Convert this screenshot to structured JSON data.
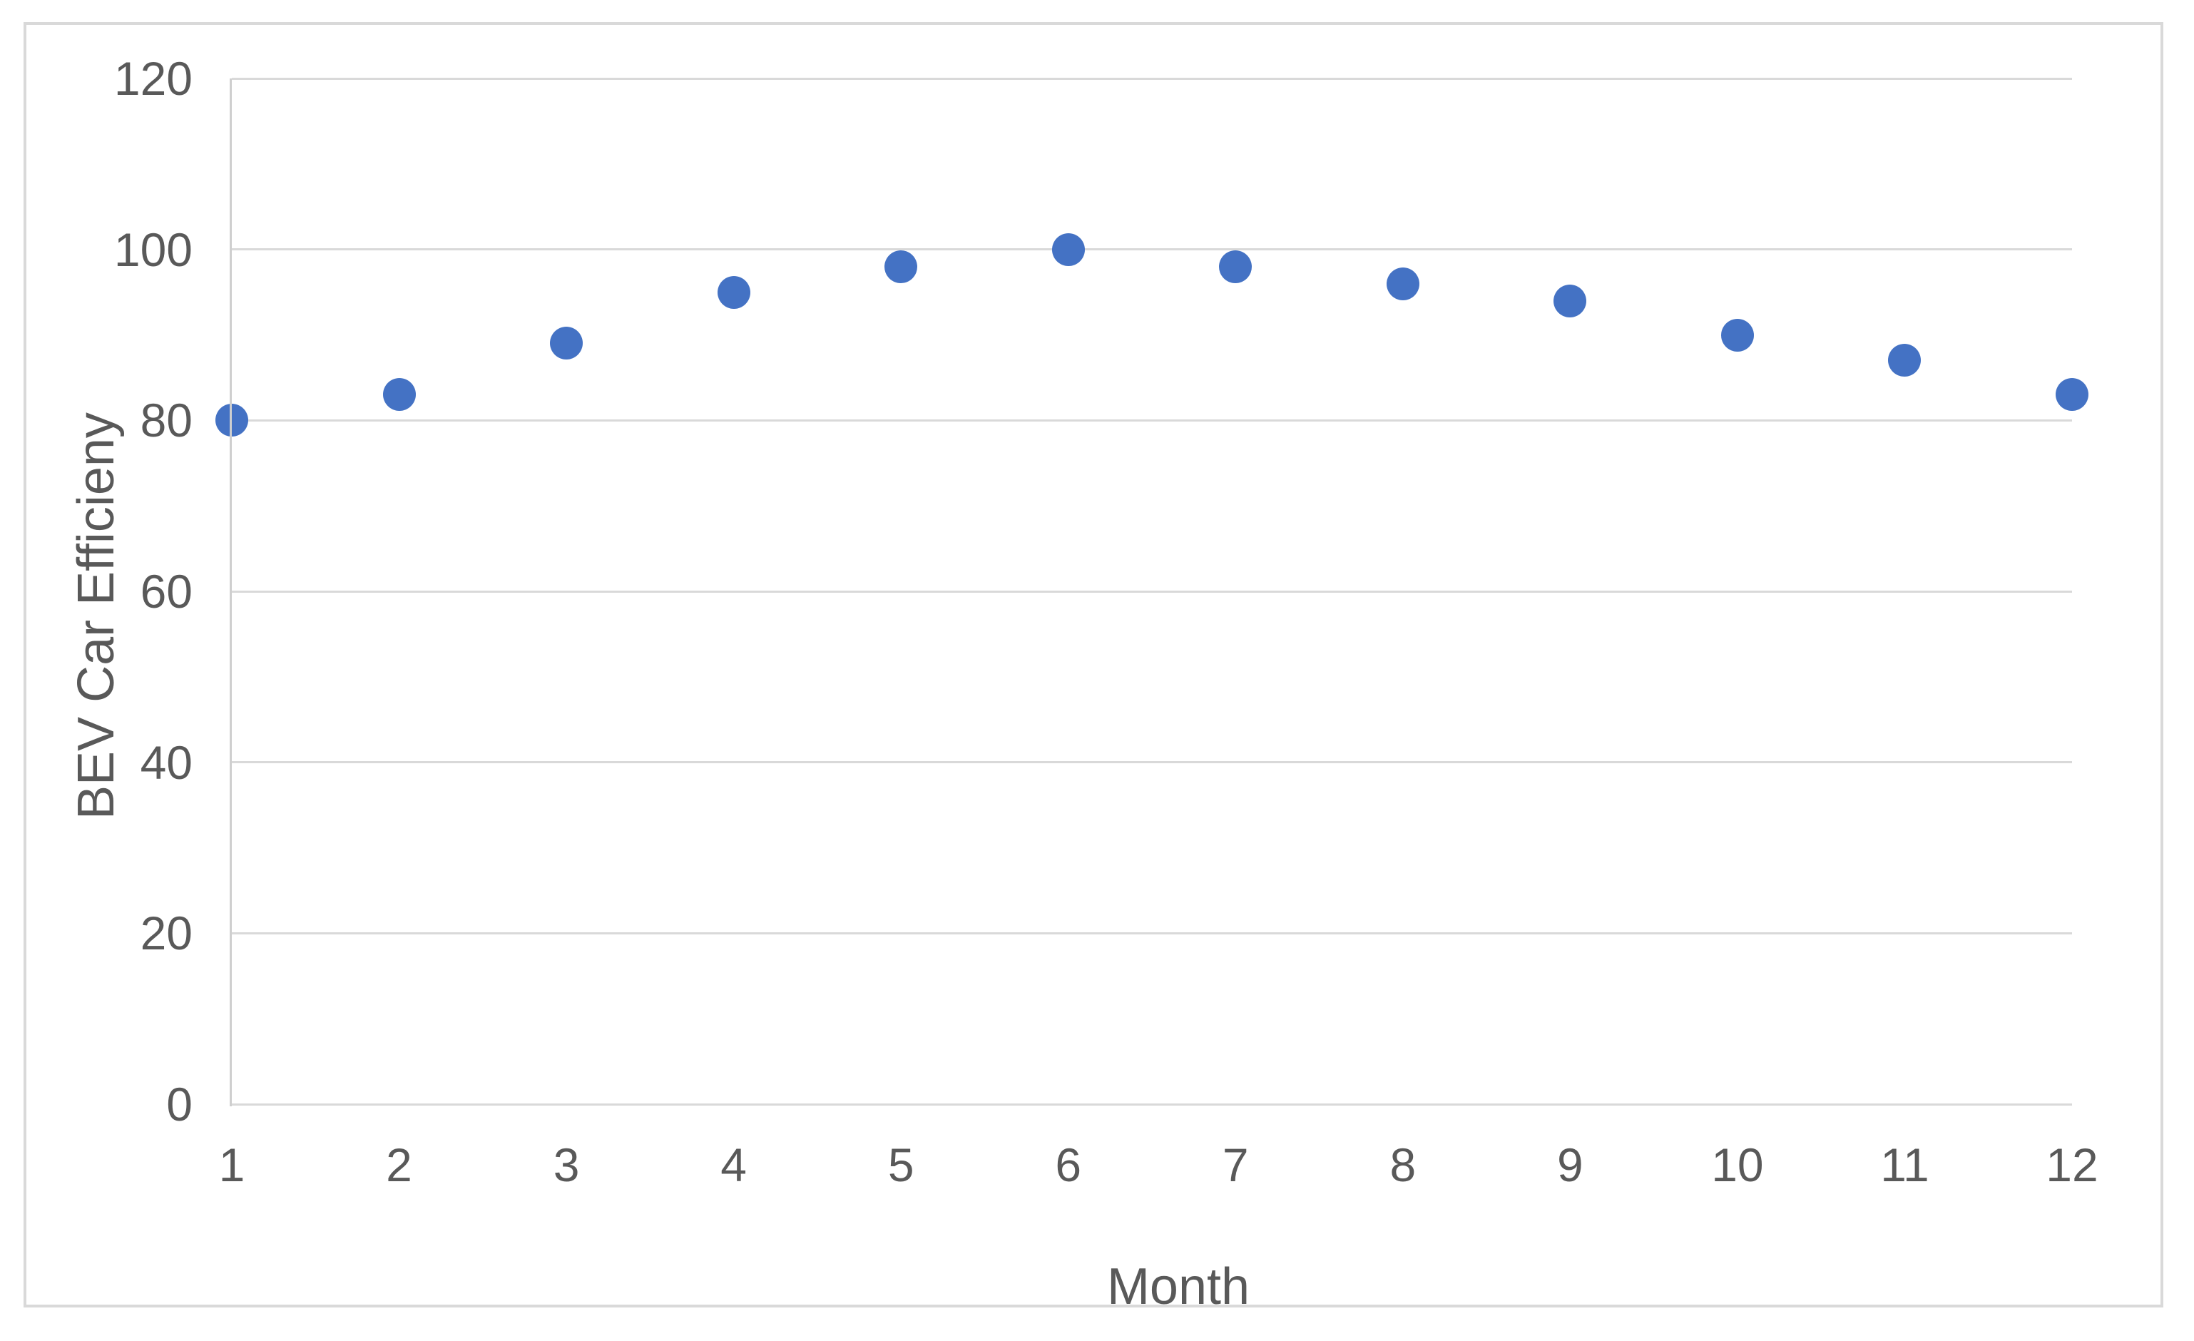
{
  "colors": {
    "marker": "#4472C4",
    "gridline": "#d9d9d9",
    "axis_line": "#cfcfcf",
    "text": "#595959",
    "frame_border": "#d9d9d9",
    "background": "#ffffff"
  },
  "chart_data": {
    "type": "scatter",
    "x": [
      1,
      2,
      3,
      4,
      5,
      6,
      7,
      8,
      9,
      10,
      11,
      12
    ],
    "x_tick_labels": [
      "1",
      "2",
      "3",
      "4",
      "5",
      "6",
      "7",
      "8",
      "9",
      "10",
      "11",
      "12"
    ],
    "values": [
      80,
      83,
      89,
      95,
      98,
      100,
      98,
      96,
      94,
      90,
      87,
      83
    ],
    "title": "",
    "xlabel": "Month",
    "ylabel": "BEV Car Efficieny",
    "ylim": [
      0,
      120
    ],
    "yticks": [
      0,
      20,
      40,
      60,
      80,
      100,
      120
    ],
    "grid": "horizontal-on",
    "legend": "none"
  }
}
